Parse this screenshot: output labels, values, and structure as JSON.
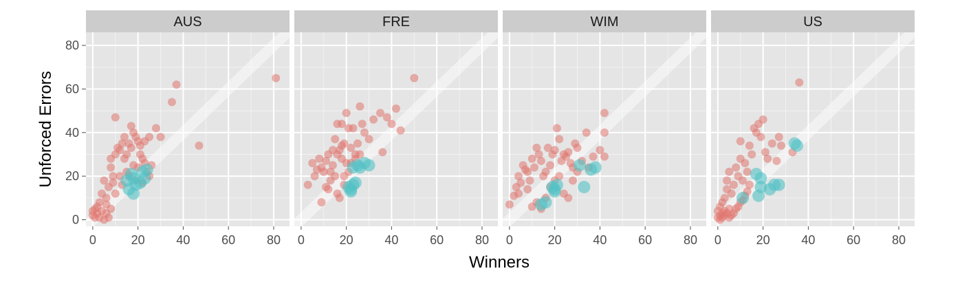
{
  "chart_data": {
    "type": "scatter",
    "title": "",
    "xlabel": "Winners",
    "ylabel": "Unforced Errors",
    "xlim": [
      -3,
      87
    ],
    "ylim": [
      -3,
      86
    ],
    "x_ticks": [
      0,
      20,
      40,
      60,
      80
    ],
    "y_ticks": [
      0,
      20,
      40,
      60,
      80
    ],
    "grid": true,
    "reference_line": "y = x",
    "colors": {
      "series_a": "#E0766F",
      "series_b": "#52C2C4",
      "panel_bg": "#E5E5E5",
      "strip_bg": "#CCCCCC"
    },
    "panels": [
      {
        "label": "AUS",
        "series_a": [
          [
            0,
            2
          ],
          [
            1,
            5
          ],
          [
            2,
            3
          ],
          [
            3,
            8
          ],
          [
            4,
            12
          ],
          [
            5,
            18
          ],
          [
            6,
            10
          ],
          [
            7,
            15
          ],
          [
            8,
            24
          ],
          [
            8,
            28
          ],
          [
            9,
            20
          ],
          [
            10,
            30
          ],
          [
            10,
            47
          ],
          [
            11,
            33
          ],
          [
            12,
            32
          ],
          [
            13,
            35
          ],
          [
            14,
            38
          ],
          [
            15,
            22
          ],
          [
            15,
            30
          ],
          [
            16,
            35
          ],
          [
            17,
            43
          ],
          [
            18,
            40
          ],
          [
            18,
            25
          ],
          [
            19,
            38
          ],
          [
            20,
            36
          ],
          [
            21,
            30
          ],
          [
            22,
            28
          ],
          [
            23,
            26
          ],
          [
            24,
            22
          ],
          [
            25,
            38
          ],
          [
            26,
            25
          ],
          [
            28,
            42
          ],
          [
            30,
            38
          ],
          [
            35,
            54
          ],
          [
            37,
            62
          ],
          [
            47,
            34
          ],
          [
            81,
            65
          ],
          [
            3,
            1
          ],
          [
            5,
            0
          ],
          [
            7,
            1
          ],
          [
            2,
            6
          ],
          [
            4,
            4
          ],
          [
            6,
            7
          ],
          [
            9,
            17
          ],
          [
            12,
            20
          ],
          [
            14,
            28
          ],
          [
            17,
            33
          ],
          [
            19,
            18
          ],
          [
            21,
            34
          ],
          [
            23,
            36
          ],
          [
            1,
            1
          ],
          [
            0,
            4
          ],
          [
            6,
            3
          ],
          [
            8,
            5
          ],
          [
            10,
            12
          ],
          [
            13,
            16
          ],
          [
            16,
            20
          ],
          [
            20,
            24
          ],
          [
            22,
            17
          ],
          [
            25,
            20
          ]
        ],
        "series_b": [
          [
            15,
            18
          ],
          [
            16,
            14
          ],
          [
            17,
            21
          ],
          [
            18,
            12
          ],
          [
            19,
            16
          ],
          [
            21,
            17
          ],
          [
            23,
            19
          ],
          [
            24,
            23
          ],
          [
            22,
            22
          ],
          [
            18,
            19
          ]
        ]
      },
      {
        "label": "FRE",
        "series_a": [
          [
            3,
            16
          ],
          [
            5,
            26
          ],
          [
            6,
            20
          ],
          [
            7,
            23
          ],
          [
            8,
            28
          ],
          [
            9,
            24
          ],
          [
            10,
            22
          ],
          [
            11,
            27
          ],
          [
            12,
            30
          ],
          [
            13,
            22
          ],
          [
            14,
            25
          ],
          [
            15,
            37
          ],
          [
            16,
            44
          ],
          [
            17,
            32
          ],
          [
            18,
            44
          ],
          [
            18,
            28
          ],
          [
            19,
            35
          ],
          [
            20,
            26
          ],
          [
            20,
            49
          ],
          [
            21,
            42
          ],
          [
            22,
            33
          ],
          [
            23,
            42
          ],
          [
            24,
            30
          ],
          [
            25,
            35
          ],
          [
            26,
            52
          ],
          [
            27,
            44
          ],
          [
            28,
            40
          ],
          [
            30,
            37
          ],
          [
            32,
            46
          ],
          [
            35,
            49
          ],
          [
            36,
            31
          ],
          [
            38,
            47
          ],
          [
            40,
            44
          ],
          [
            42,
            51
          ],
          [
            44,
            41
          ],
          [
            50,
            65
          ],
          [
            11,
            15
          ],
          [
            13,
            18
          ],
          [
            15,
            20
          ],
          [
            16,
            12
          ],
          [
            17,
            10
          ],
          [
            19,
            16
          ],
          [
            21,
            22
          ],
          [
            9,
            8
          ],
          [
            12,
            14
          ],
          [
            14,
            32
          ],
          [
            16,
            30
          ],
          [
            18,
            34
          ],
          [
            19,
            20
          ],
          [
            22,
            26
          ],
          [
            24,
            28
          ],
          [
            26,
            30
          ]
        ],
        "series_b": [
          [
            21,
            15
          ],
          [
            22,
            13
          ],
          [
            23,
            16
          ],
          [
            24,
            17
          ],
          [
            25,
            25
          ],
          [
            26,
            24
          ],
          [
            28,
            26
          ],
          [
            30,
            25
          ],
          [
            22,
            14
          ],
          [
            23,
            24
          ]
        ]
      },
      {
        "label": "WIM",
        "series_a": [
          [
            0,
            7
          ],
          [
            2,
            11
          ],
          [
            3,
            15
          ],
          [
            4,
            20
          ],
          [
            5,
            17
          ],
          [
            6,
            25
          ],
          [
            7,
            23
          ],
          [
            8,
            22
          ],
          [
            9,
            18
          ],
          [
            10,
            28
          ],
          [
            11,
            24
          ],
          [
            12,
            33
          ],
          [
            13,
            30
          ],
          [
            14,
            27
          ],
          [
            15,
            20
          ],
          [
            16,
            22
          ],
          [
            17,
            33
          ],
          [
            18,
            25
          ],
          [
            19,
            30
          ],
          [
            20,
            32
          ],
          [
            21,
            42
          ],
          [
            22,
            37
          ],
          [
            23,
            27
          ],
          [
            24,
            30
          ],
          [
            25,
            29
          ],
          [
            26,
            31
          ],
          [
            27,
            26
          ],
          [
            28,
            24
          ],
          [
            29,
            35
          ],
          [
            30,
            33
          ],
          [
            32,
            27
          ],
          [
            34,
            40
          ],
          [
            35,
            24
          ],
          [
            37,
            29
          ],
          [
            40,
            32
          ],
          [
            42,
            49
          ],
          [
            42,
            40
          ],
          [
            42,
            29
          ],
          [
            10,
            6
          ],
          [
            12,
            8
          ],
          [
            14,
            5
          ],
          [
            16,
            10
          ],
          [
            18,
            15
          ],
          [
            20,
            18
          ],
          [
            22,
            20
          ],
          [
            24,
            12
          ],
          [
            26,
            10
          ],
          [
            28,
            18
          ],
          [
            30,
            22
          ],
          [
            4,
            12
          ],
          [
            8,
            14
          ]
        ],
        "series_b": [
          [
            14,
            7
          ],
          [
            16,
            8
          ],
          [
            19,
            15
          ],
          [
            20,
            13
          ],
          [
            21,
            16
          ],
          [
            31,
            25
          ],
          [
            33,
            15
          ],
          [
            36,
            23
          ],
          [
            38,
            24
          ],
          [
            20,
            14
          ]
        ]
      },
      {
        "label": "US",
        "series_a": [
          [
            0,
            1
          ],
          [
            0,
            4
          ],
          [
            1,
            2
          ],
          [
            1,
            6
          ],
          [
            2,
            3
          ],
          [
            2,
            8
          ],
          [
            3,
            4
          ],
          [
            3,
            10
          ],
          [
            4,
            14
          ],
          [
            4,
            18
          ],
          [
            5,
            5
          ],
          [
            5,
            22
          ],
          [
            6,
            12
          ],
          [
            7,
            16
          ],
          [
            8,
            24
          ],
          [
            9,
            20
          ],
          [
            10,
            36
          ],
          [
            10,
            28
          ],
          [
            11,
            18
          ],
          [
            12,
            26
          ],
          [
            13,
            22
          ],
          [
            14,
            34
          ],
          [
            15,
            30
          ],
          [
            16,
            42
          ],
          [
            17,
            40
          ],
          [
            18,
            44
          ],
          [
            19,
            38
          ],
          [
            20,
            46
          ],
          [
            21,
            31
          ],
          [
            22,
            28
          ],
          [
            24,
            35
          ],
          [
            26,
            27
          ],
          [
            27,
            38
          ],
          [
            28,
            34
          ],
          [
            33,
            31
          ],
          [
            36,
            63
          ],
          [
            1,
            0
          ],
          [
            2,
            1
          ],
          [
            3,
            2
          ],
          [
            4,
            3
          ],
          [
            5,
            1
          ],
          [
            6,
            2
          ],
          [
            7,
            3
          ],
          [
            8,
            5
          ],
          [
            9,
            6
          ],
          [
            10,
            8
          ],
          [
            11,
            9
          ],
          [
            12,
            11
          ],
          [
            13,
            13
          ],
          [
            14,
            16
          ]
        ],
        "series_b": [
          [
            11,
            10
          ],
          [
            17,
            21
          ],
          [
            18,
            11
          ],
          [
            19,
            15
          ],
          [
            19,
            19
          ],
          [
            23,
            14
          ],
          [
            25,
            16
          ],
          [
            27,
            16
          ],
          [
            34,
            35
          ],
          [
            35,
            34
          ]
        ]
      }
    ]
  }
}
